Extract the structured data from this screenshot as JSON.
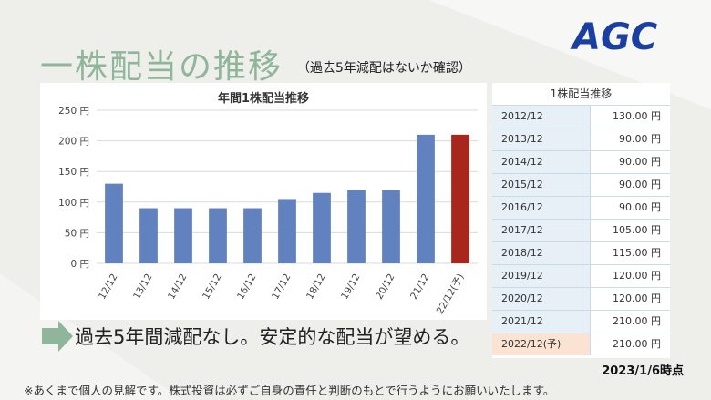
{
  "header": {
    "title": "一株配当の推移",
    "subtitle": "（過去5年減配はないか確認）",
    "logo": "AGC"
  },
  "chart_data": {
    "type": "bar",
    "title": "年間1株配当推移",
    "categories": [
      "12/12",
      "13/12",
      "14/12",
      "15/12",
      "16/12",
      "17/12",
      "18/12",
      "19/12",
      "20/12",
      "21/12",
      "22/12(予)"
    ],
    "values": [
      130,
      90,
      90,
      90,
      90,
      105,
      115,
      120,
      120,
      210,
      210
    ],
    "ylim": [
      0,
      250
    ],
    "yticks": [
      "0 円",
      "50 円",
      "100 円",
      "150 円",
      "200 円",
      "250 円"
    ],
    "grid": true,
    "colors": {
      "actual": "#6282bf",
      "forecast": "#a8261b"
    }
  },
  "table": {
    "title": "1株配当推移",
    "rows": [
      {
        "year": "2012/12",
        "value": "130.00 円"
      },
      {
        "year": "2013/12",
        "value": "90.00 円"
      },
      {
        "year": "2014/12",
        "value": "90.00 円"
      },
      {
        "year": "2015/12",
        "value": "90.00 円"
      },
      {
        "year": "2016/12",
        "value": "90.00 円"
      },
      {
        "year": "2017/12",
        "value": "105.00 円"
      },
      {
        "year": "2018/12",
        "value": "115.00 円"
      },
      {
        "year": "2019/12",
        "value": "120.00 円"
      },
      {
        "year": "2020/12",
        "value": "120.00 円"
      },
      {
        "year": "2021/12",
        "value": "210.00 円"
      },
      {
        "year": "2022/12(予)",
        "value": "210.00 円"
      }
    ]
  },
  "message": "過去5年間減配なし。安定的な配当が望める。",
  "dateline": "2023/1/6時点",
  "disclaimer": "※あくまで個人の見解です。株式投資は必ずご自身の責任と判断のもとで行うようにお願いいたします。"
}
